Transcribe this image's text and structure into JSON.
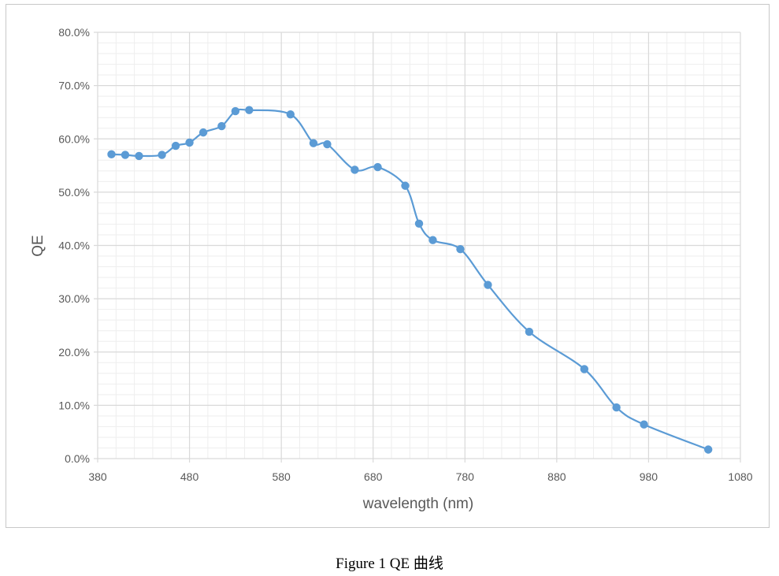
{
  "caption": "Figure 1 QE 曲线",
  "colors": {
    "series": "#5b9bd5",
    "major_grid": "#d9d9d9",
    "minor_grid": "#eeeeee",
    "text": "#595959"
  },
  "chart_data": {
    "type": "line",
    "xlabel": "wavelength (nm)",
    "ylabel": "QE",
    "xlim": [
      380,
      1080
    ],
    "ylim": [
      0,
      80
    ],
    "x_ticks": [
      380,
      480,
      580,
      680,
      780,
      880,
      980,
      1080
    ],
    "x_tick_labels": [
      "380",
      "480",
      "580",
      "680",
      "780",
      "880",
      "980",
      "1080"
    ],
    "y_ticks": [
      0,
      10,
      20,
      30,
      40,
      50,
      60,
      70,
      80
    ],
    "y_tick_labels": [
      "0.0%",
      "10.0%",
      "20.0%",
      "30.0%",
      "40.0%",
      "50.0%",
      "60.0%",
      "70.0%",
      "80.0%"
    ],
    "grid": true,
    "legend": "none",
    "smooth": true,
    "series": [
      {
        "x": [
          395,
          410,
          425,
          450,
          465,
          480,
          495,
          515,
          530,
          545,
          590,
          615,
          630,
          660,
          685,
          715,
          730,
          745,
          775,
          805,
          850,
          910,
          945,
          975,
          1045
        ],
        "y": [
          57.1,
          57.0,
          56.8,
          57.0,
          58.7,
          59.3,
          61.2,
          62.4,
          65.2,
          65.4,
          64.6,
          59.2,
          59.0,
          54.2,
          54.7,
          51.2,
          44.1,
          41.0,
          39.3,
          32.6,
          23.8,
          16.8,
          9.6,
          6.4,
          1.7
        ]
      }
    ]
  }
}
